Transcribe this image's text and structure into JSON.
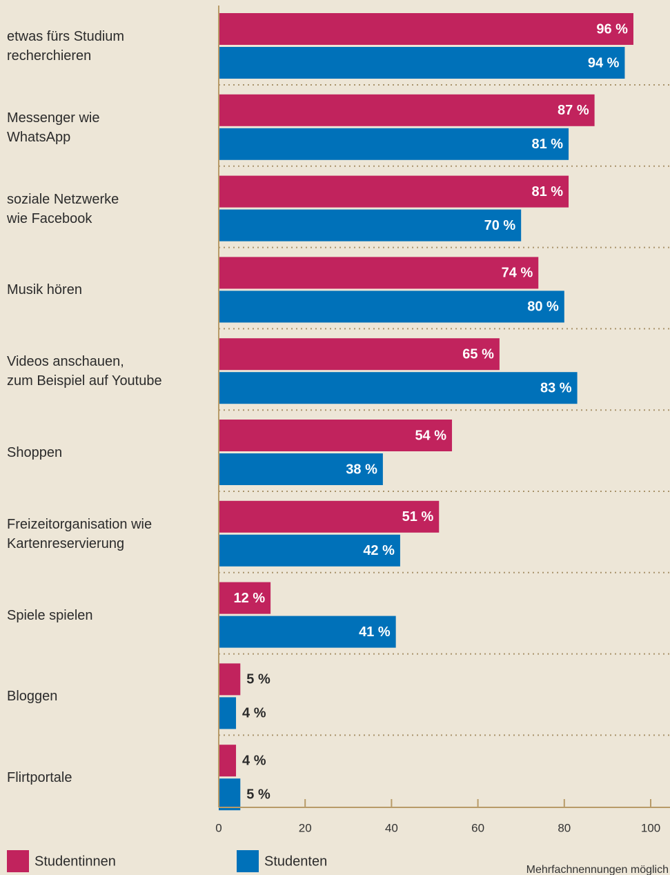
{
  "chart_data": {
    "type": "hbar",
    "categories": [
      "etwas fürs Studium\nrecherchieren",
      "Messenger wie\nWhatsApp",
      "soziale Netzwerke\nwie Facebook",
      "Musik hören",
      "Videos anschauen,\nzum Beispiel auf Youtube",
      "Shoppen",
      "Freizeitorganisation wie\nKartenreservierung",
      "Spiele spielen",
      "Bloggen",
      "Flirtportale"
    ],
    "series": [
      {
        "name": "Studentinnen",
        "color": "#c1235d",
        "values": [
          96,
          87,
          81,
          74,
          65,
          54,
          51,
          12,
          5,
          4
        ],
        "value_labels": [
          "96 %",
          "87 %",
          "81 %",
          "74 %",
          "65 %",
          "54 %",
          "51 %",
          "12 %",
          "5 %",
          "4 %"
        ]
      },
      {
        "name": "Studenten",
        "color": "#0071b9",
        "values": [
          94,
          81,
          70,
          80,
          83,
          38,
          42,
          41,
          4,
          5
        ],
        "value_labels": [
          "94 %",
          "81 %",
          "70 %",
          "80 %",
          "83 %",
          "38 %",
          "42 %",
          "41 %",
          "4 %",
          "5 %"
        ]
      }
    ],
    "xlim": [
      0,
      100
    ],
    "xticks": [
      0,
      20,
      40,
      60,
      80,
      100
    ],
    "note": "Mehrfachnennungen möglich"
  }
}
